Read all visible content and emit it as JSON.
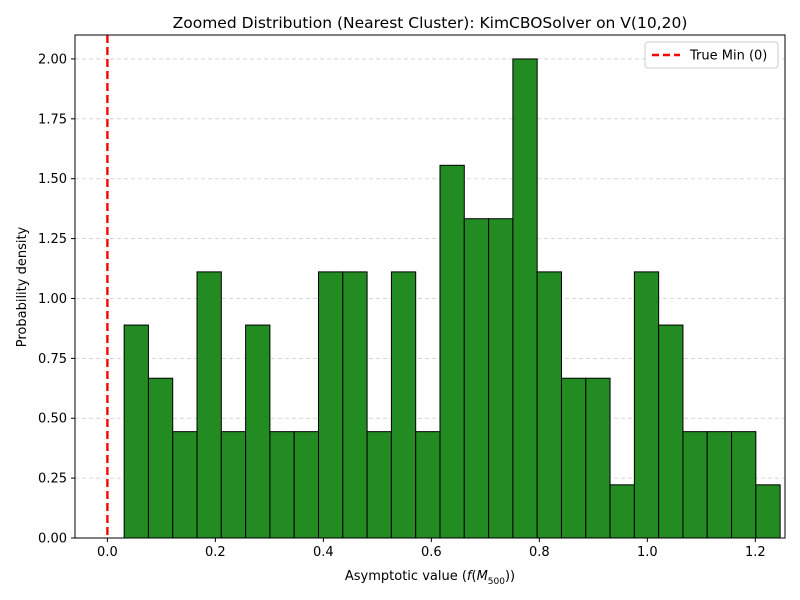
{
  "chart_data": {
    "type": "bar",
    "title": "Zoomed Distribution (Nearest Cluster): KimCBOSolver on V(10,20)",
    "xlabel": "Asymptotic value (f(M500))",
    "xlabel_parts": {
      "prefix": "Asymptotic value (",
      "func": "f",
      "open": "(",
      "M": "M",
      "sub": "500",
      "close": "))"
    },
    "ylabel": "Probability density",
    "xlim": [
      -0.06,
      1.255
    ],
    "ylim": [
      0,
      2.1
    ],
    "x_ticks": [
      0.0,
      0.2,
      0.4,
      0.6,
      0.8,
      1.0,
      1.2
    ],
    "x_tick_labels": [
      "0.0",
      "0.2",
      "0.4",
      "0.6",
      "0.8",
      "1.0",
      "1.2"
    ],
    "y_ticks": [
      0.0,
      0.25,
      0.5,
      0.75,
      1.0,
      1.25,
      1.5,
      1.75,
      2.0
    ],
    "y_tick_labels": [
      "0.00",
      "0.25",
      "0.50",
      "0.75",
      "1.00",
      "1.25",
      "1.50",
      "1.75",
      "2.00"
    ],
    "grid": {
      "y": true,
      "x": false,
      "style": "dashed"
    },
    "bin_start": 0.031,
    "bin_width": 0.045,
    "values": [
      0.889,
      0.667,
      0.444,
      1.111,
      0.444,
      0.889,
      0.444,
      0.444,
      1.111,
      1.111,
      0.444,
      1.111,
      0.444,
      1.556,
      1.333,
      1.333,
      2.0,
      1.111,
      0.667,
      0.667,
      0.222,
      1.111,
      0.889,
      0.444,
      0.444,
      0.444,
      0.222
    ],
    "bar_color": "#228b22",
    "bar_edge_color": "#000000",
    "reference_line": {
      "x": 0.0,
      "label": "True Min (0)",
      "color": "#ff0000",
      "style": "dashed"
    },
    "legend": {
      "placement": "top-right",
      "entries": [
        "True Min (0)"
      ]
    }
  }
}
